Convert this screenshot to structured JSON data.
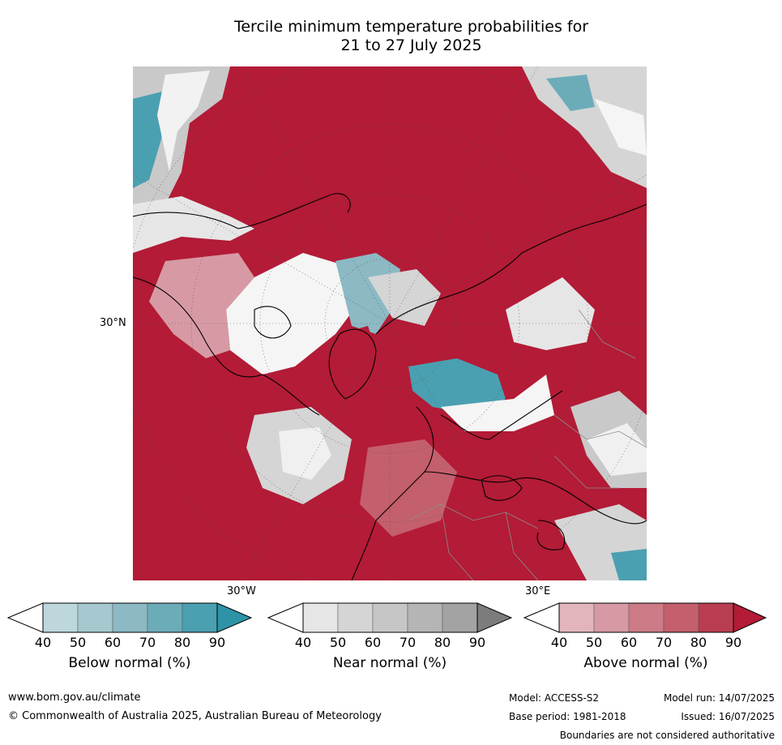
{
  "title": {
    "line1": "Tercile minimum temperature probabilities for",
    "line2": "21 to 27 July 2025"
  },
  "map": {
    "lat_label": "30°N",
    "lon_labels": [
      "30°W",
      "30°E"
    ],
    "colors": {
      "above_dominant": "#b31b36",
      "below_dominant": "#2e93a6",
      "near_dominant": "#9a9a9a",
      "coastline": "#000000",
      "borders": "#8c8c8c"
    }
  },
  "legend": {
    "ticks": [
      "40",
      "50",
      "60",
      "70",
      "80",
      "90"
    ],
    "below": {
      "label": "Below normal (%)",
      "colors": [
        "#ffffff",
        "#bdd7dd",
        "#a6c8cf",
        "#8cb9c4",
        "#6cacb9",
        "#4aa0b1",
        "#2e93a6"
      ]
    },
    "near": {
      "label": "Near normal (%)",
      "colors": [
        "#ffffff",
        "#e6e6e6",
        "#d5d5d5",
        "#c6c6c6",
        "#b5b5b5",
        "#a3a3a3",
        "#7c7c7c"
      ]
    },
    "above": {
      "label": "Above normal (%)",
      "colors": [
        "#ffffff",
        "#e2b5bc",
        "#d79aa4",
        "#cc7b87",
        "#c45f6d",
        "#b93d50",
        "#b31b36"
      ]
    }
  },
  "footer": {
    "url": "www.bom.gov.au/climate",
    "copyright": "© Commonwealth of Australia 2025, Australian Bureau of Meteorology",
    "model": "Model: ACCESS-S2",
    "model_run": "Model run: 14/07/2025",
    "base_period": "Base period: 1981-2018",
    "issued": "Issued: 16/07/2025",
    "disclaimer": "Boundaries are not considered authoritative"
  }
}
